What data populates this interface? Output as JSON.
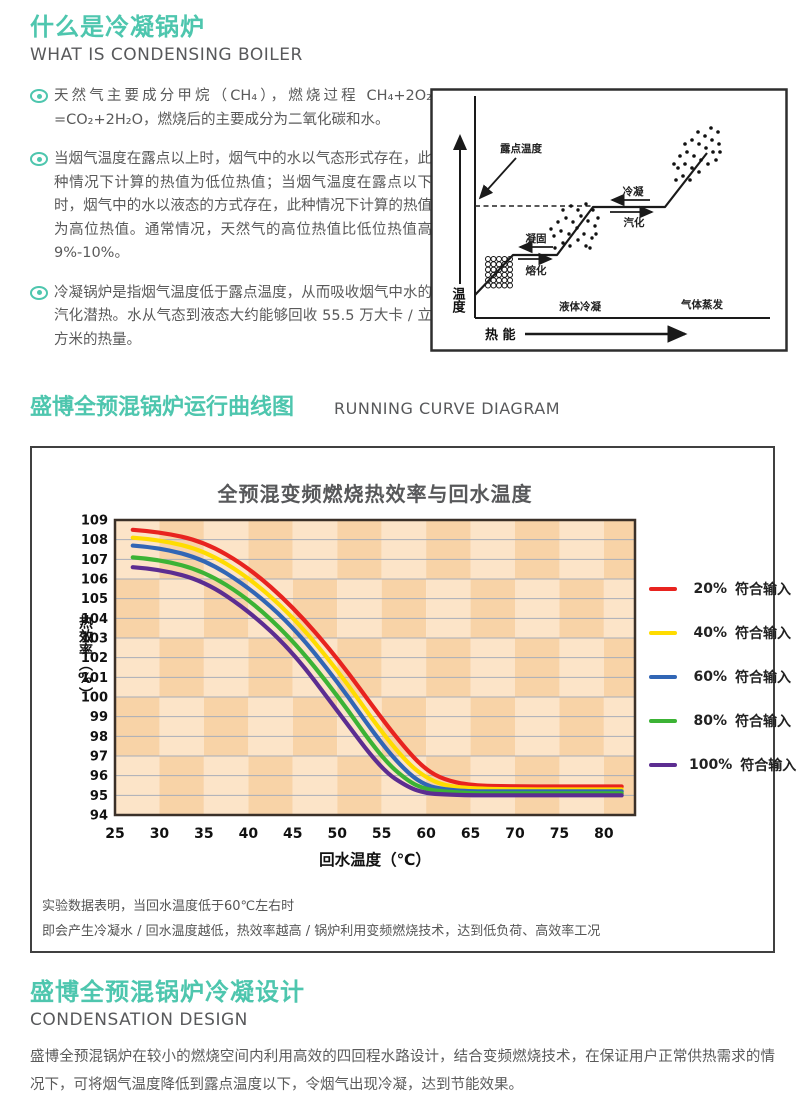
{
  "colors": {
    "teal": "#4ec6ae",
    "body_text": "#5a5a5a",
    "chart_bg_light": "#fce4c8",
    "chart_bg_dark": "#f8d3a7",
    "grid": "#a9aeb8",
    "frame": "#3a3028"
  },
  "section_what": {
    "title_cn": "什么是冷凝锅炉",
    "title_en": "WHAT IS CONDENSING BOILER",
    "bullets": [
      "天然气主要成分甲烷（CH₄），燃烧过程 CH₄+2O₂ =CO₂+2H₂O，燃烧后的主要成分为二氧化碳和水。",
      "当烟气温度在露点以上时，烟气中的水以气态形式存在，此种情况下计算的热值为低位热值；当烟气温度在露点以下时，烟气中的水以液态的方式存在，此种情况下计算的热值为高位热值。通常情况，天然气的高位热值比低位热值高 9%-10%。",
      "冷凝锅炉是指烟气温度低于露点温度，从而吸收烟气中水的汽化潜热。水从气态到液态大约能够回收 55.5 万大卡 / 立方米的热量。"
    ]
  },
  "diagram": {
    "dew_point_label": "露点温度",
    "condense_label": "冷凝",
    "vaporize_label": "汽化",
    "solidify_label": "凝固",
    "melt_label": "熔化",
    "liquid_label": "液体冷凝",
    "gas_label": "气体蒸发",
    "y_axis_label": "温度",
    "x_axis_label": "热 能"
  },
  "section_curve": {
    "title_cn": "盛博全预混锅炉运行曲线图",
    "title_en": "RUNNING CURVE DIAGRAM"
  },
  "chart_data": {
    "type": "line",
    "title": "全预混变频燃烧热效率与回水温度",
    "xlabel": "回水温度（℃）",
    "ylabel": "热效率（%）",
    "xlim": [
      25,
      83.5
    ],
    "ylim": [
      94,
      109
    ],
    "xticks": [
      25,
      30,
      35,
      40,
      45,
      50,
      55,
      60,
      65,
      70,
      75,
      80
    ],
    "ytick_step": 1,
    "grid": "horizontal",
    "legend_position": "right",
    "legend_suffix": "符合输入",
    "series": [
      {
        "name": "20%",
        "color": "#e8231f",
        "points": [
          [
            27,
            108.5
          ],
          [
            30,
            108.4
          ],
          [
            35,
            107.9
          ],
          [
            40,
            106.6
          ],
          [
            45,
            104.6
          ],
          [
            50,
            102.0
          ],
          [
            55,
            98.9
          ],
          [
            58,
            97.2
          ],
          [
            60,
            96.3
          ],
          [
            62,
            95.8
          ],
          [
            65,
            95.5
          ],
          [
            70,
            95.45
          ],
          [
            75,
            95.45
          ],
          [
            82,
            95.45
          ]
        ]
      },
      {
        "name": "40%",
        "color": "#ffdc00",
        "points": [
          [
            27,
            108.1
          ],
          [
            30,
            108.0
          ],
          [
            35,
            107.45
          ],
          [
            40,
            106.1
          ],
          [
            45,
            104.1
          ],
          [
            50,
            101.4
          ],
          [
            55,
            98.2
          ],
          [
            58,
            96.6
          ],
          [
            60,
            95.9
          ],
          [
            62,
            95.5
          ],
          [
            65,
            95.35
          ],
          [
            70,
            95.3
          ],
          [
            75,
            95.3
          ],
          [
            82,
            95.3
          ]
        ]
      },
      {
        "name": "60%",
        "color": "#3166b5",
        "points": [
          [
            27,
            107.7
          ],
          [
            30,
            107.6
          ],
          [
            35,
            107.0
          ],
          [
            40,
            105.6
          ],
          [
            45,
            103.6
          ],
          [
            50,
            100.8
          ],
          [
            55,
            97.6
          ],
          [
            58,
            96.1
          ],
          [
            60,
            95.5
          ],
          [
            62,
            95.3
          ],
          [
            65,
            95.2
          ],
          [
            70,
            95.2
          ],
          [
            75,
            95.2
          ],
          [
            82,
            95.2
          ]
        ]
      },
      {
        "name": "80%",
        "color": "#3cb335",
        "points": [
          [
            27,
            107.1
          ],
          [
            30,
            107.0
          ],
          [
            35,
            106.4
          ],
          [
            40,
            105.0
          ],
          [
            45,
            102.9
          ],
          [
            50,
            100.1
          ],
          [
            55,
            96.9
          ],
          [
            58,
            95.7
          ],
          [
            60,
            95.3
          ],
          [
            62,
            95.2
          ],
          [
            65,
            95.1
          ],
          [
            70,
            95.1
          ],
          [
            75,
            95.1
          ],
          [
            82,
            95.1
          ]
        ]
      },
      {
        "name": "100%",
        "color": "#5c2d91",
        "points": [
          [
            27,
            106.6
          ],
          [
            30,
            106.5
          ],
          [
            35,
            105.9
          ],
          [
            40,
            104.4
          ],
          [
            45,
            102.3
          ],
          [
            50,
            99.3
          ],
          [
            55,
            96.3
          ],
          [
            58,
            95.4
          ],
          [
            60,
            95.1
          ],
          [
            62,
            95.05
          ],
          [
            65,
            95.0
          ],
          [
            70,
            95.0
          ],
          [
            75,
            95.0
          ],
          [
            82,
            95.0
          ]
        ]
      }
    ],
    "notes": [
      "实验数据表明，当回水温度低于60℃左右时",
      "即会产生冷凝水 / 回水温度越低，热效率越高 / 锅炉利用变频燃烧技术，达到低负荷、高效率工况"
    ]
  },
  "section_design": {
    "title_cn": "盛博全预混锅炉冷凝设计",
    "title_en": "CONDENSATION DESIGN",
    "paragraph": "盛博全预混锅炉在较小的燃烧空间内利用高效的四回程水路设计，结合变频燃烧技术，在保证用户正常供热需求的情况下，可将烟气温度降低到露点温度以下，令烟气出现冷凝，达到节能效果。"
  }
}
